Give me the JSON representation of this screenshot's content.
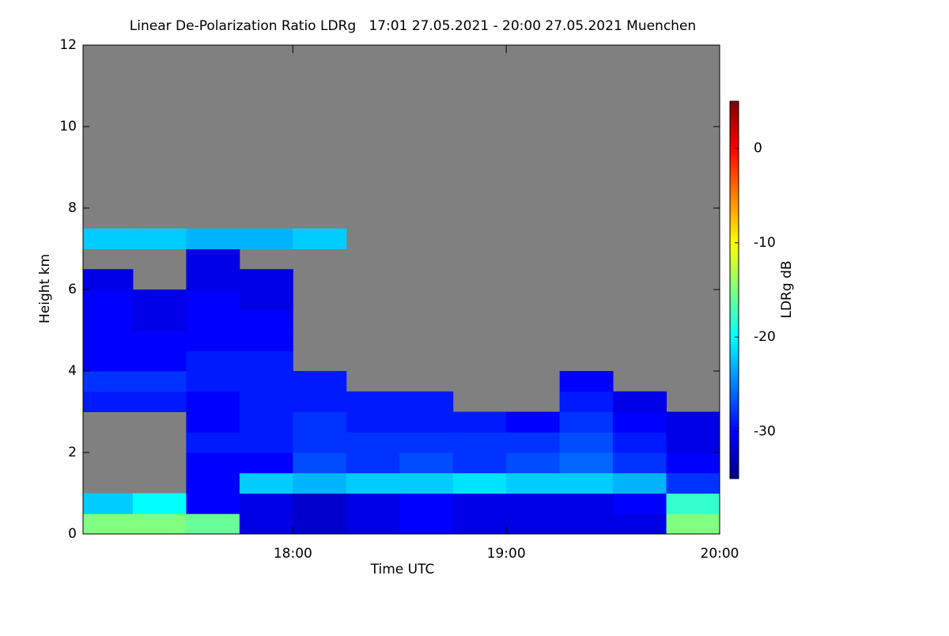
{
  "chart_data": {
    "type": "heatmap",
    "title": "Linear De-Polarization Ratio LDRg   17:01 27.05.2021 - 20:00 27.05.2021 Muenchen",
    "x_label": "Time UTC",
    "y_label": "Height km",
    "xlim": [
      17.0167,
      20
    ],
    "xticks": [
      {
        "value": 18,
        "label": "18:00"
      },
      {
        "value": 19,
        "label": "19:00"
      },
      {
        "value": 20,
        "label": "20:00"
      }
    ],
    "ylim": [
      0,
      12
    ],
    "yticks": [
      0,
      2,
      4,
      6,
      8,
      10,
      12
    ],
    "x_bins": [
      17,
      17.25,
      17.5,
      17.75,
      18,
      18.25,
      18.5,
      18.75,
      19,
      19.25,
      19.5,
      19.75,
      20
    ],
    "y_bins": [
      0,
      0.5,
      1,
      1.5,
      2,
      2.5,
      3,
      3.5,
      4,
      4.5,
      5,
      5.5,
      6,
      6.5,
      7,
      7.5,
      8
    ],
    "values": [
      [
        -15,
        -22,
        null,
        null,
        null,
        null,
        -29,
        -28,
        -30,
        -30,
        -30,
        -30,
        -31,
        null,
        -22,
        null
      ],
      [
        -15,
        -20,
        null,
        null,
        null,
        null,
        -29,
        -28,
        -30,
        -30,
        -31,
        -31,
        null,
        null,
        -22,
        null
      ],
      [
        -16,
        -30,
        -30,
        -30,
        -29,
        -30,
        -30,
        -29,
        -29,
        -30,
        -30,
        -30,
        -31,
        -31,
        -23,
        null
      ],
      [
        -31,
        -31,
        -22,
        -30,
        -29,
        -29,
        -29,
        -29,
        -29,
        -30,
        -30,
        -31,
        -31,
        null,
        -23,
        null
      ],
      [
        -32,
        -32,
        -23,
        -27,
        -28,
        -28,
        -29,
        -29,
        null,
        null,
        null,
        null,
        null,
        null,
        -22,
        null
      ],
      [
        -31,
        -31,
        -22,
        -28,
        -28,
        -29,
        -29,
        null,
        null,
        null,
        null,
        null,
        null,
        null,
        null,
        null
      ],
      [
        -30,
        -30,
        -22,
        -27,
        -28,
        -29,
        -29,
        null,
        null,
        null,
        null,
        null,
        null,
        null,
        null,
        null
      ],
      [
        -31,
        -31,
        -21,
        -28,
        -28,
        -29,
        null,
        null,
        null,
        null,
        null,
        null,
        null,
        null,
        null,
        null
      ],
      [
        -31,
        -31,
        -22,
        -27,
        -28,
        -30,
        null,
        null,
        null,
        null,
        null,
        null,
        null,
        null,
        null,
        null
      ],
      [
        -31,
        -31,
        -22,
        -26,
        -27,
        -28,
        -29,
        -30,
        null,
        null,
        null,
        null,
        null,
        null,
        null,
        null
      ],
      [
        -31,
        -30,
        -23,
        -28,
        -29,
        -30,
        -31,
        null,
        null,
        null,
        null,
        null,
        null,
        null,
        null,
        null
      ],
      [
        -15,
        -18,
        -28,
        -30,
        -31,
        -31,
        null,
        null,
        null,
        null,
        null,
        null,
        null,
        null,
        null,
        null
      ]
    ],
    "background": "#808080",
    "colormap": "jet",
    "colorbar": {
      "label": "LDRg dB",
      "lim": [
        -35,
        5
      ],
      "ticks": [
        0,
        -10,
        -20,
        -30
      ]
    }
  }
}
